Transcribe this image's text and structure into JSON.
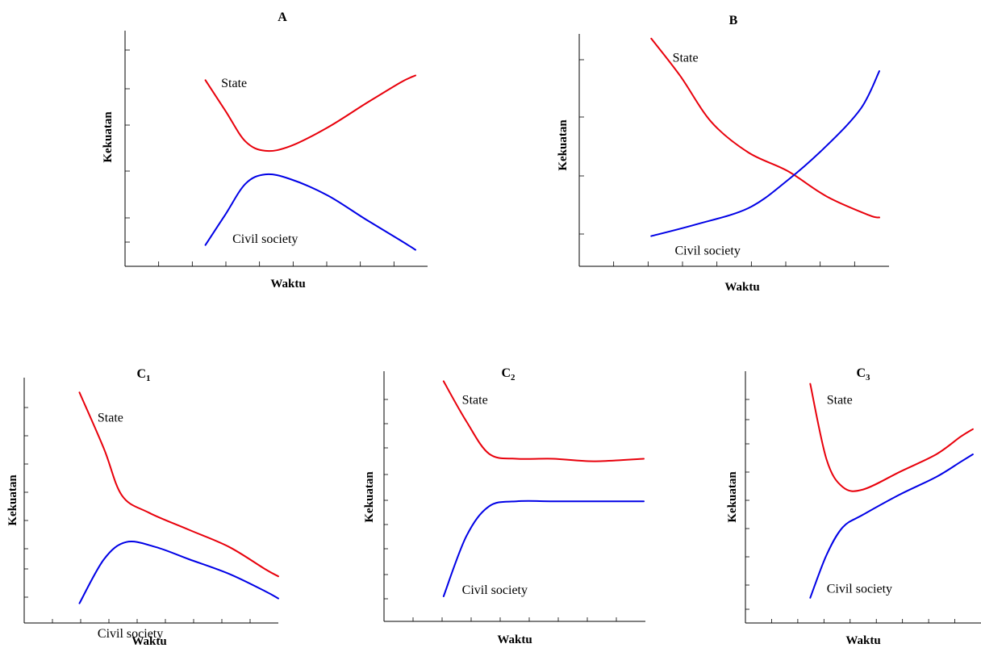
{
  "chart_data": [
    {
      "id": "A",
      "type": "line",
      "title": "A",
      "title_sub": "",
      "xlabel": "Waktu",
      "ylabel": "Kekuatan",
      "xlim": [
        0,
        10
      ],
      "ylim": [
        0,
        10
      ],
      "series": [
        {
          "name": "State",
          "color": "#e8000b",
          "label_anchor": [
            0.7,
            7.6
          ],
          "points": [
            [
              1.6,
              7.9
            ],
            [
              2.4,
              6.6
            ],
            [
              3.2,
              5.3
            ],
            [
              4.0,
              4.9
            ],
            [
              5.0,
              5.1
            ],
            [
              6.5,
              5.9
            ],
            [
              8.0,
              6.9
            ],
            [
              9.4,
              7.8
            ],
            [
              10.0,
              8.1
            ]
          ]
        },
        {
          "name": "Civil society",
          "color": "#0000e6",
          "label_anchor": [
            1.2,
            1.0
          ],
          "points": [
            [
              1.6,
              0.9
            ],
            [
              2.4,
              2.2
            ],
            [
              3.2,
              3.5
            ],
            [
              4.0,
              3.9
            ],
            [
              5.0,
              3.7
            ],
            [
              6.5,
              3.0
            ],
            [
              8.0,
              2.0
            ],
            [
              9.4,
              1.1
            ],
            [
              10.0,
              0.7
            ]
          ]
        }
      ]
    },
    {
      "id": "B",
      "type": "line",
      "title": "B",
      "title_sub": "",
      "xlabel": "Waktu",
      "ylabel": "Kekuatan",
      "xlim": [
        0,
        10
      ],
      "ylim": [
        0,
        10
      ],
      "series": [
        {
          "name": "State",
          "color": "#e8000b",
          "label_anchor": [
            0.9,
            8.8
          ],
          "points": [
            [
              1.3,
              9.8
            ],
            [
              2.4,
              8.2
            ],
            [
              3.6,
              6.2
            ],
            [
              5.0,
              4.9
            ],
            [
              6.5,
              4.1
            ],
            [
              8.0,
              3.0
            ],
            [
              9.6,
              2.2
            ],
            [
              10.0,
              2.1
            ]
          ]
        },
        {
          "name": "Civil society",
          "color": "#0000e6",
          "label_anchor": [
            1.0,
            0.5
          ],
          "points": [
            [
              1.3,
              1.3
            ],
            [
              3.0,
              1.8
            ],
            [
              5.0,
              2.5
            ],
            [
              6.5,
              3.7
            ],
            [
              8.0,
              5.2
            ],
            [
              9.3,
              6.8
            ],
            [
              10.0,
              8.4
            ]
          ]
        }
      ]
    },
    {
      "id": "C1",
      "type": "line",
      "title": "C",
      "title_sub": "1",
      "xlabel": "Waktu",
      "ylabel": "Kekuatan",
      "xlim": [
        0,
        10
      ],
      "ylim": [
        0,
        10
      ],
      "series": [
        {
          "name": "State",
          "color": "#e8000b",
          "label_anchor": [
            0.9,
            8.2
          ],
          "points": [
            [
              1.1,
              9.4
            ],
            [
              2.2,
              7.1
            ],
            [
              3.0,
              5.2
            ],
            [
              4.2,
              4.5
            ],
            [
              6.0,
              3.8
            ],
            [
              7.8,
              3.1
            ],
            [
              9.4,
              2.2
            ],
            [
              10.0,
              1.9
            ]
          ]
        },
        {
          "name": "Civil society",
          "color": "#0000e6",
          "label_anchor": [
            0.9,
            -0.6
          ],
          "points": [
            [
              1.1,
              0.8
            ],
            [
              2.2,
              2.6
            ],
            [
              3.2,
              3.3
            ],
            [
              4.5,
              3.1
            ],
            [
              6.0,
              2.6
            ],
            [
              7.8,
              2.0
            ],
            [
              9.4,
              1.3
            ],
            [
              10.0,
              1.0
            ]
          ]
        }
      ]
    },
    {
      "id": "C2",
      "type": "line",
      "title": "C",
      "title_sub": "2",
      "xlabel": "Waktu",
      "ylabel": "Kekuatan",
      "xlim": [
        0,
        10
      ],
      "ylim": [
        0,
        10
      ],
      "series": [
        {
          "name": "State",
          "color": "#e8000b",
          "label_anchor": [
            0.9,
            8.7
          ],
          "points": [
            [
              1.2,
              9.6
            ],
            [
              2.2,
              8.0
            ],
            [
              3.2,
              6.7
            ],
            [
              4.4,
              6.5
            ],
            [
              6.0,
              6.5
            ],
            [
              7.8,
              6.4
            ],
            [
              10.0,
              6.5
            ]
          ]
        },
        {
          "name": "Civil society",
          "color": "#0000e6",
          "label_anchor": [
            0.9,
            1.1
          ],
          "points": [
            [
              1.2,
              1.0
            ],
            [
              2.2,
              3.4
            ],
            [
              3.2,
              4.6
            ],
            [
              4.4,
              4.8
            ],
            [
              6.0,
              4.8
            ],
            [
              7.8,
              4.8
            ],
            [
              10.0,
              4.8
            ]
          ]
        }
      ]
    },
    {
      "id": "C3",
      "type": "line",
      "title": "C",
      "title_sub": "3",
      "xlabel": "Waktu",
      "ylabel": "Kekuatan",
      "xlim": [
        0,
        10
      ],
      "ylim": [
        0,
        10
      ],
      "series": [
        {
          "name": "State",
          "color": "#e8000b",
          "label_anchor": [
            0.9,
            8.7
          ],
          "points": [
            [
              1.6,
              9.5
            ],
            [
              2.4,
              6.5
            ],
            [
              3.2,
              5.4
            ],
            [
              4.2,
              5.3
            ],
            [
              6.0,
              6.0
            ],
            [
              7.8,
              6.7
            ],
            [
              9.0,
              7.4
            ],
            [
              9.6,
              7.7
            ]
          ]
        },
        {
          "name": "Civil society",
          "color": "#0000e6",
          "label_anchor": [
            0.9,
            1.2
          ],
          "points": [
            [
              1.6,
              1.0
            ],
            [
              2.4,
              2.7
            ],
            [
              3.2,
              3.8
            ],
            [
              4.2,
              4.3
            ],
            [
              6.0,
              5.1
            ],
            [
              7.8,
              5.8
            ],
            [
              9.0,
              6.4
            ],
            [
              9.6,
              6.7
            ]
          ]
        }
      ]
    }
  ]
}
